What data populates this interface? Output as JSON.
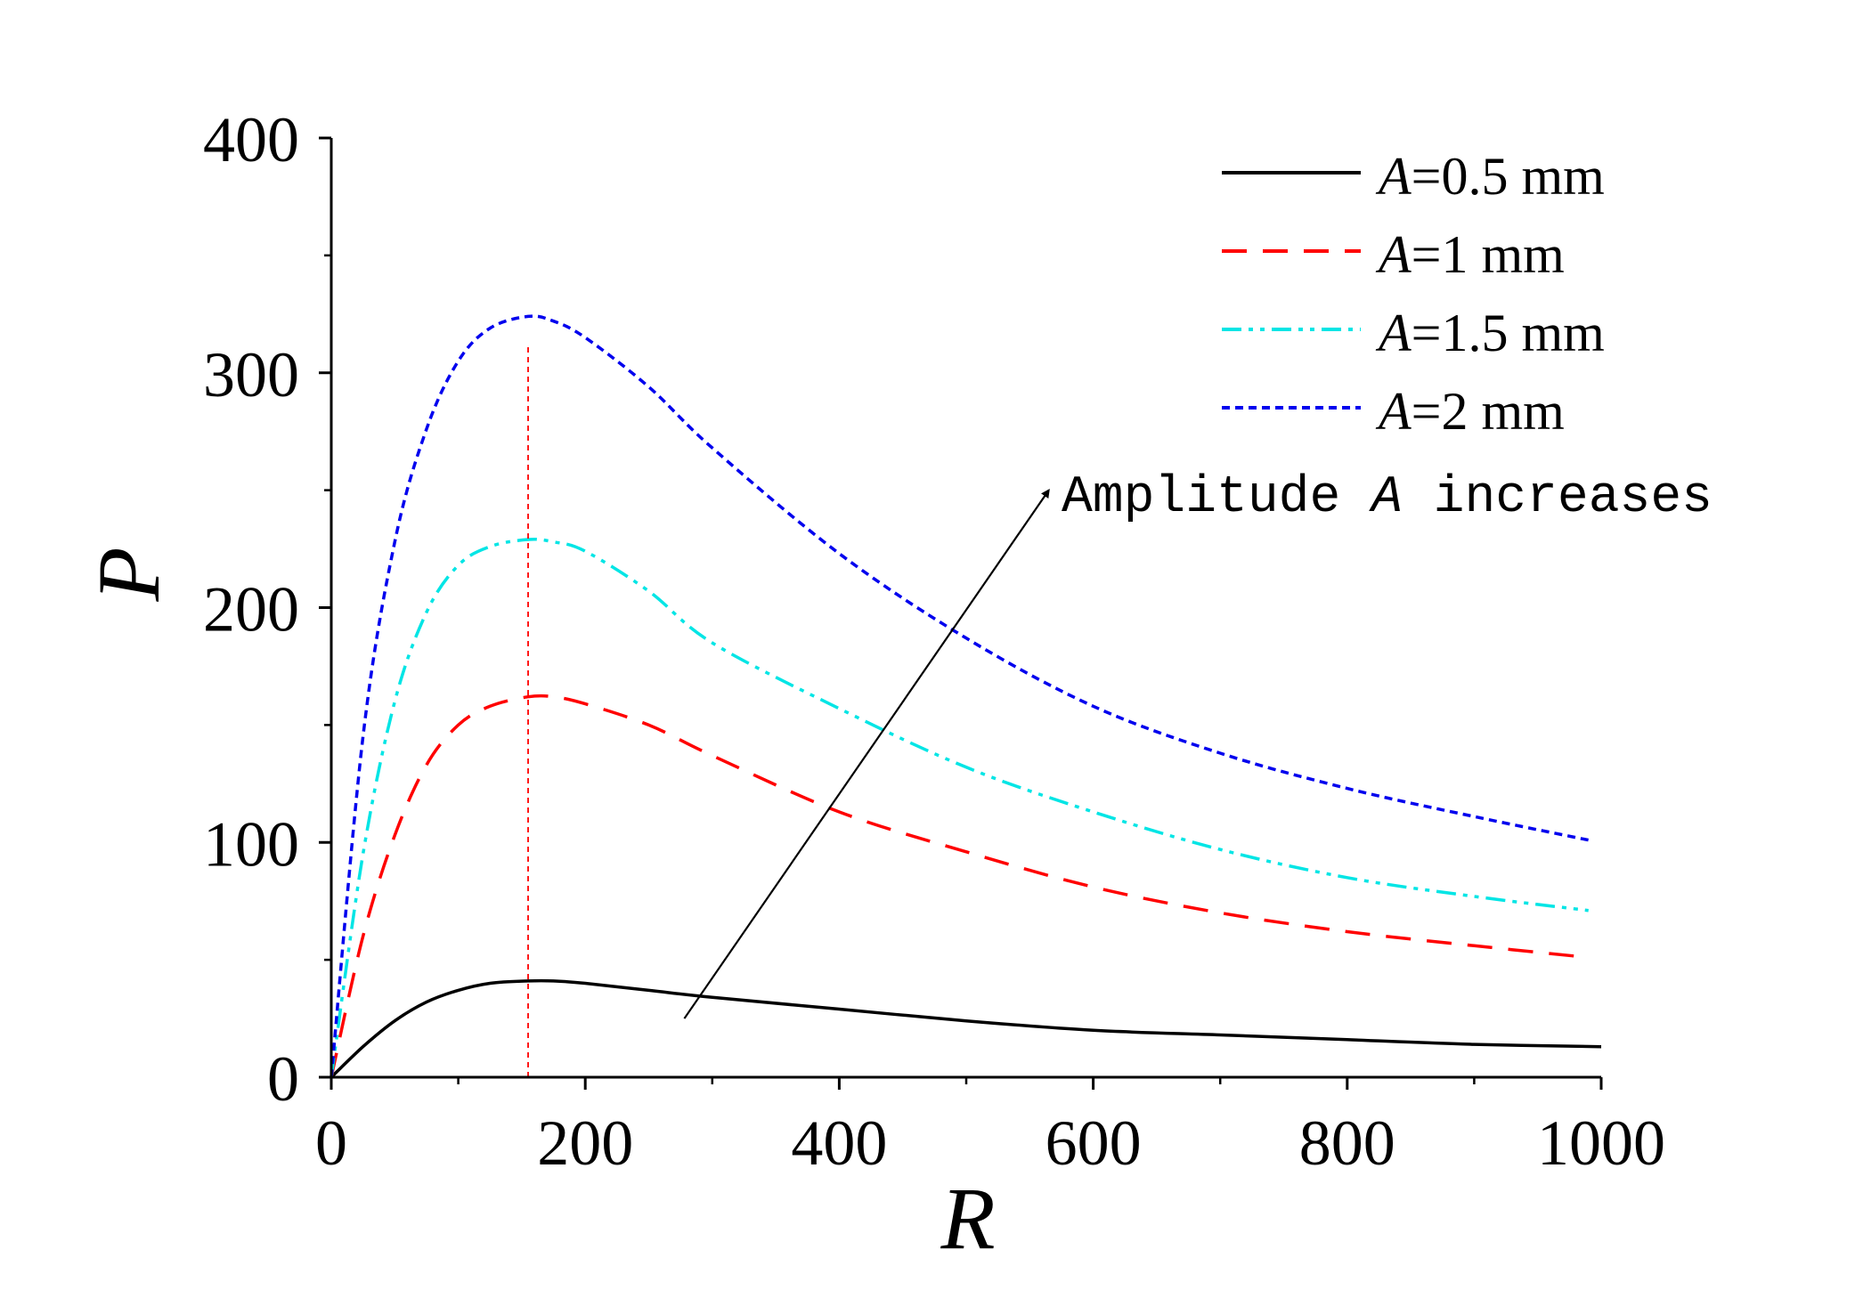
{
  "chart_data": {
    "type": "line",
    "title": "",
    "xlabel": "R",
    "ylabel": "P",
    "xlim": [
      0,
      1000
    ],
    "ylim": [
      0,
      400
    ],
    "xticks": [
      0,
      200,
      400,
      600,
      800,
      1000
    ],
    "yticks": [
      0,
      100,
      200,
      300,
      400
    ],
    "xtick_labels": [
      "0",
      "200",
      "400",
      "600",
      "800",
      "1000"
    ],
    "ytick_labels": [
      "0",
      "100",
      "200",
      "300",
      "400"
    ],
    "grid": false,
    "legend_position": "top-right",
    "peak_marker": {
      "x": 155,
      "color": "#ff0000",
      "style": "dotted"
    },
    "series": [
      {
        "name": "A=0.5 mm",
        "prefix": "A",
        "suffix": "=0.5 mm",
        "color": "#000000",
        "style": "solid",
        "x": [
          0,
          25,
          50,
          75,
          100,
          125,
          155,
          175,
          200,
          250,
          300,
          400,
          500,
          600,
          700,
          800,
          900,
          1000
        ],
        "y": [
          0,
          13,
          24,
          32,
          37,
          40,
          41,
          41,
          40,
          37,
          34,
          29,
          24,
          20,
          18,
          16,
          14,
          13
        ]
      },
      {
        "name": "A=1 mm",
        "prefix": "A",
        "suffix": "=1 mm",
        "color": "#ff0000",
        "style": "dashed",
        "x": [
          0,
          25,
          50,
          75,
          100,
          125,
          155,
          175,
          200,
          250,
          300,
          400,
          500,
          600,
          700,
          800,
          900,
          990
        ],
        "y": [
          0,
          60,
          103,
          133,
          150,
          158,
          162,
          162,
          159,
          150,
          137,
          113,
          96,
          81,
          70,
          62,
          56,
          51
        ]
      },
      {
        "name": "A=1.5 mm",
        "prefix": "A",
        "suffix": "=1.5 mm",
        "color": "#00e5e5",
        "style": "dash-dot-dot",
        "x": [
          0,
          25,
          50,
          75,
          100,
          125,
          155,
          175,
          200,
          250,
          300,
          400,
          500,
          600,
          700,
          800,
          900,
          990
        ],
        "y": [
          0,
          95,
          160,
          198,
          218,
          226,
          229,
          228,
          224,
          207,
          185,
          157,
          132,
          113,
          97,
          85,
          77,
          71
        ]
      },
      {
        "name": "A=2 mm",
        "prefix": "A",
        "suffix": "=2 mm",
        "color": "#0000ee",
        "style": "dotted",
        "x": [
          0,
          25,
          50,
          75,
          100,
          125,
          155,
          175,
          200,
          250,
          300,
          400,
          500,
          600,
          700,
          800,
          900,
          990
        ],
        "y": [
          0,
          145,
          228,
          276,
          305,
          319,
          324,
          322,
          315,
          294,
          268,
          223,
          187,
          158,
          138,
          123,
          111,
          101
        ]
      }
    ],
    "annotation": {
      "text_before": "Amplitude ",
      "text_italic": "A",
      "text_after": " increases",
      "arrow_from": [
        278,
        25
      ],
      "arrow_to": [
        565,
        250
      ]
    }
  }
}
